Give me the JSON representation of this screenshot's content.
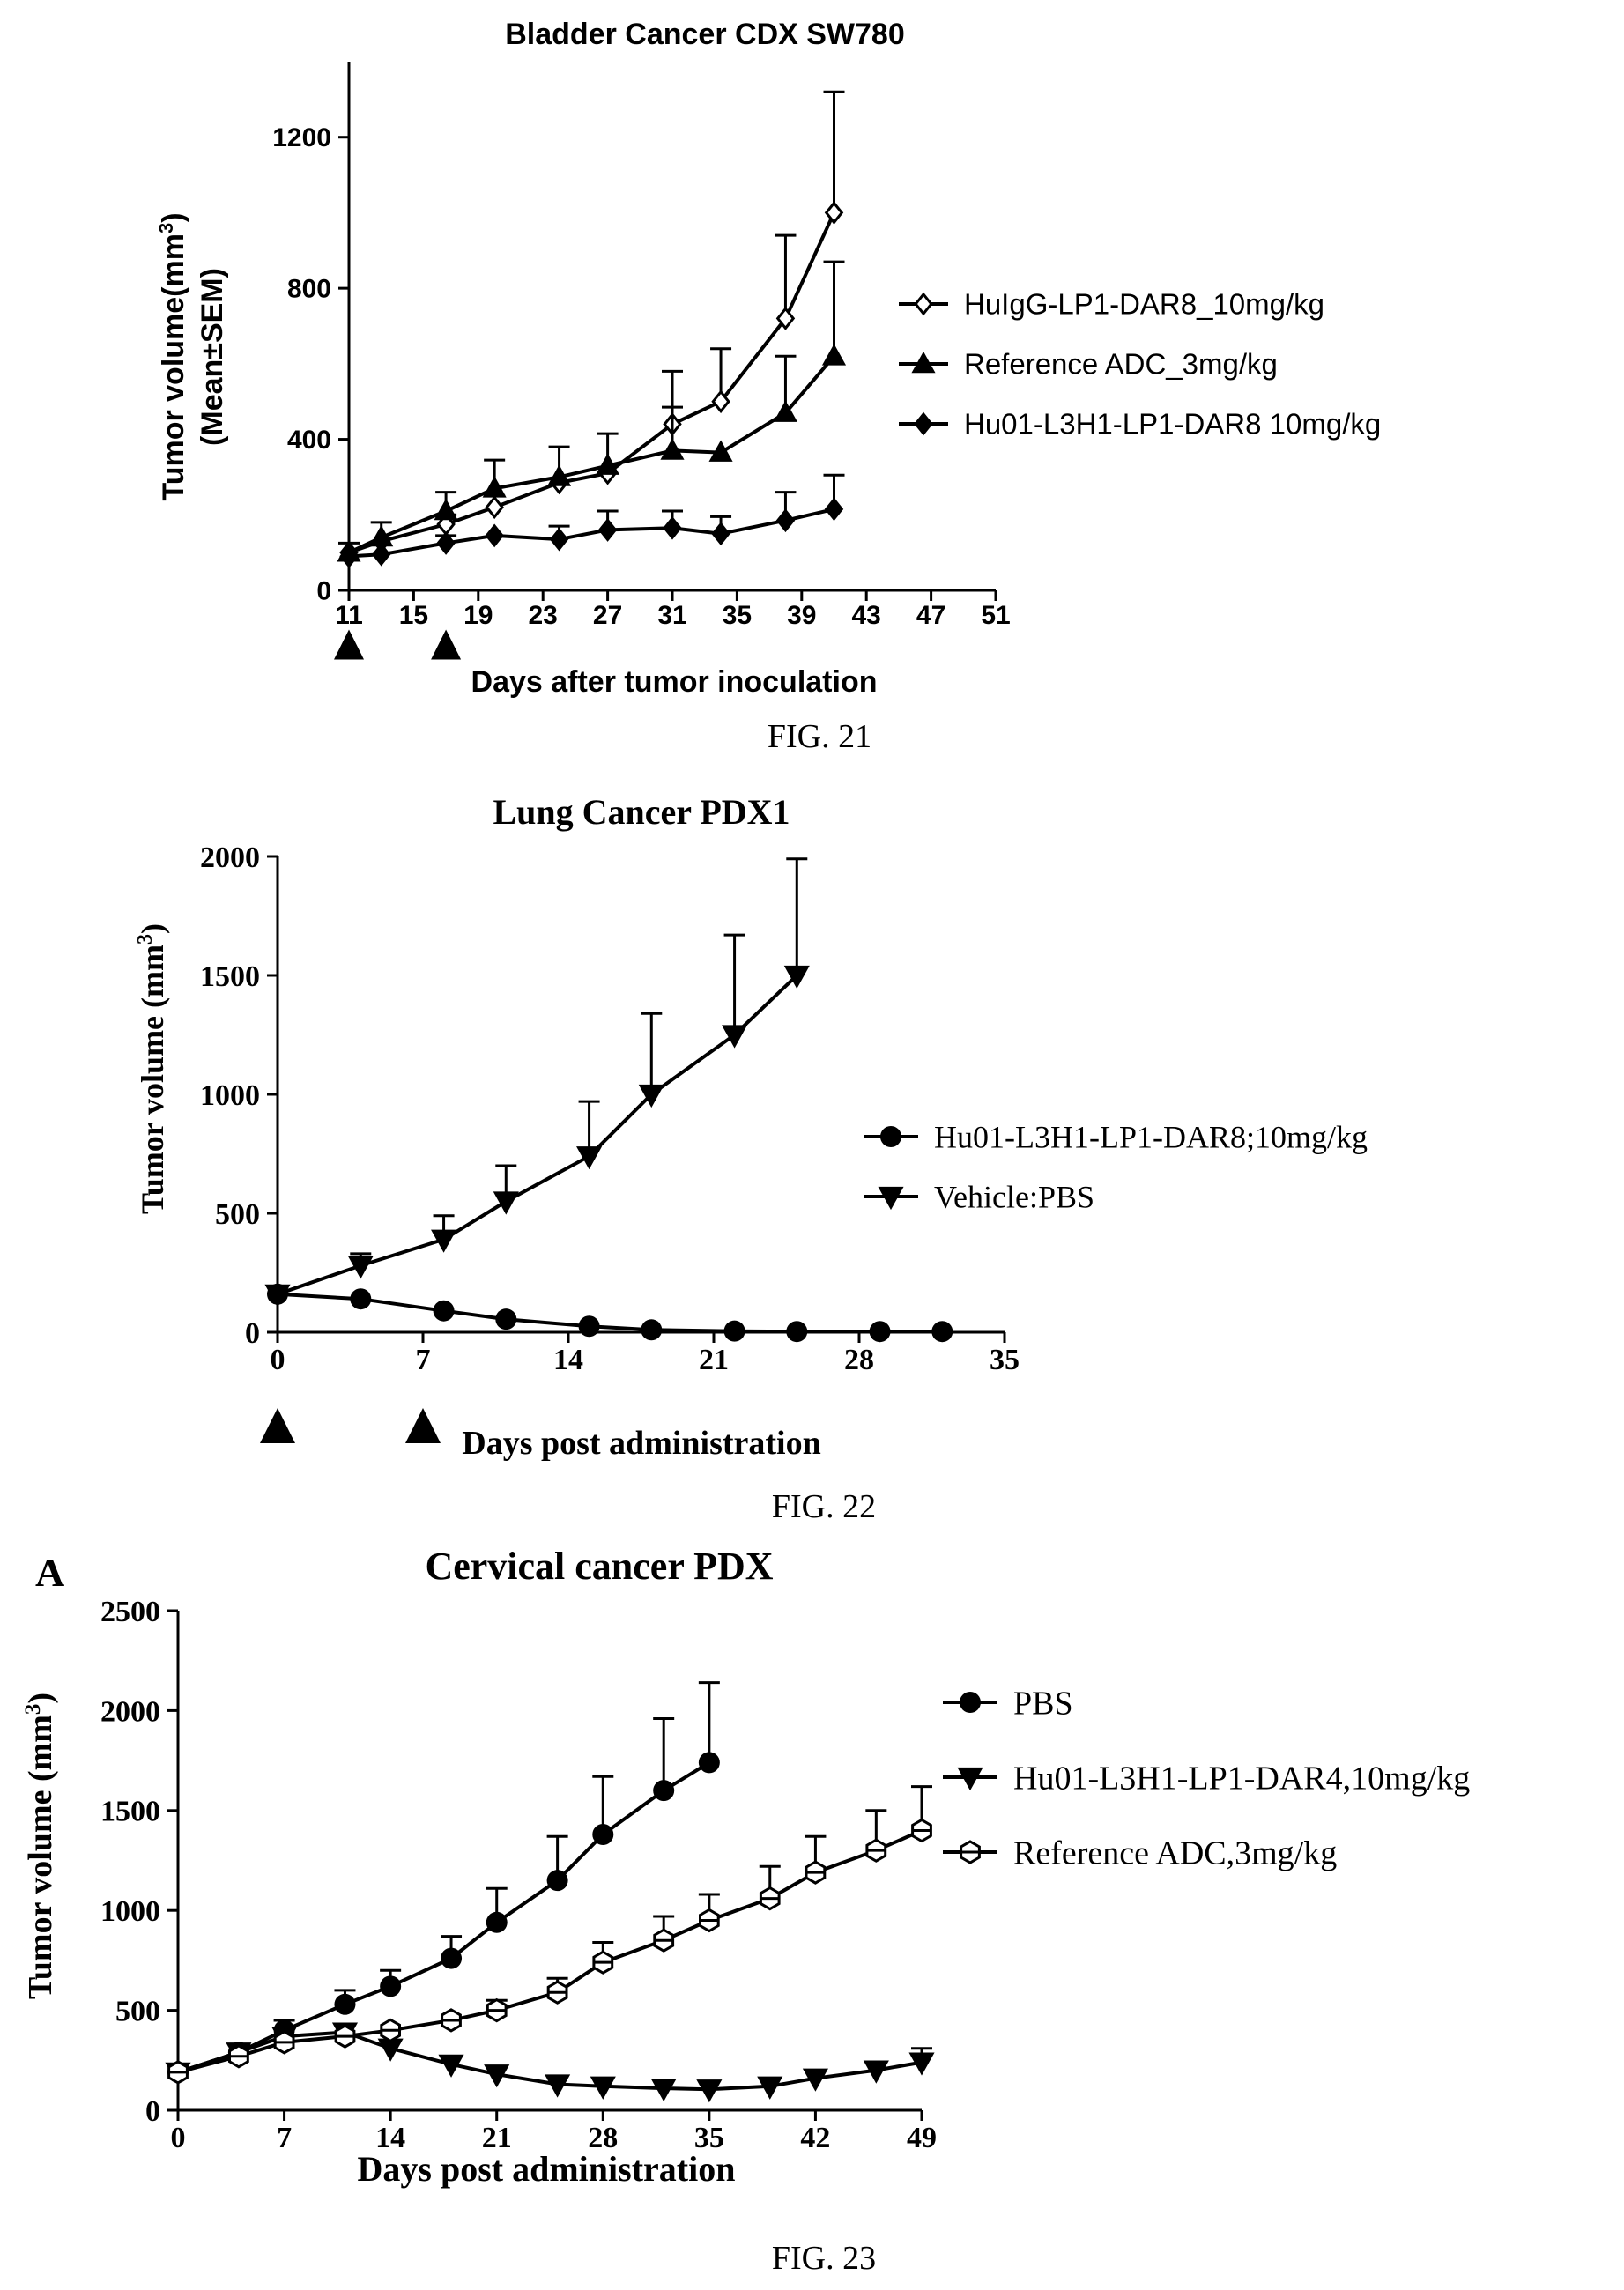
{
  "chart_data": [
    {
      "type": "line",
      "title": "Bladder Cancer CDX SW780",
      "figure_label": "FIG. 21",
      "panel_label": "",
      "xlabel": "Days  after tumor inoculation",
      "ylabel_line1": "Tumor volume(mm",
      "ylabel_sup": "3",
      "ylabel_line1_end": ")",
      "ylabel_line2": "(Mean±SEM)",
      "xlim": [
        11,
        51
      ],
      "ylim": [
        0,
        1400
      ],
      "xticks": [
        11,
        15,
        19,
        23,
        27,
        31,
        35,
        39,
        43,
        47,
        51
      ],
      "yticks": [
        0,
        400,
        800,
        1200
      ],
      "dosing_days": [
        11,
        17
      ],
      "grid": false,
      "legend_position": "right",
      "series": [
        {
          "name": "HuIgG-LP1-DAR8_10mg/kg",
          "marker": "diamond-open",
          "x": [
            11,
            13,
            17,
            20,
            24,
            27,
            31,
            34,
            38,
            41
          ],
          "y": [
            100,
            130,
            175,
            220,
            285,
            310,
            440,
            500,
            720,
            1000
          ],
          "err": [
            0,
            0,
            25,
            30,
            0,
            0,
            140,
            140,
            220,
            320
          ]
        },
        {
          "name": "Reference ADC_3mg/kg",
          "marker": "triangle-up",
          "x": [
            11,
            13,
            17,
            20,
            24,
            27,
            31,
            34,
            38,
            41
          ],
          "y": [
            100,
            140,
            210,
            270,
            300,
            330,
            370,
            365,
            470,
            620
          ],
          "err": [
            25,
            40,
            50,
            75,
            80,
            85,
            115,
            0,
            150,
            250
          ]
        },
        {
          "name": "Hu01-L3H1-LP1-DAR8 10mg/kg",
          "marker": "diamond",
          "x": [
            11,
            13,
            17,
            20,
            24,
            27,
            31,
            34,
            38,
            41
          ],
          "y": [
            90,
            95,
            125,
            145,
            135,
            160,
            165,
            150,
            185,
            215
          ],
          "err": [
            0,
            0,
            20,
            0,
            35,
            50,
            45,
            45,
            75,
            90
          ]
        }
      ]
    },
    {
      "type": "line",
      "title": "Lung Cancer PDX1",
      "figure_label": "FIG. 22",
      "panel_label": "",
      "xlabel": "Days post administration",
      "ylabel_line1": "Tumor volume (mm",
      "ylabel_sup": "3",
      "ylabel_line1_end": ")",
      "ylabel_line2": "",
      "xlim": [
        0,
        35
      ],
      "ylim": [
        0,
        2000
      ],
      "xticks": [
        0,
        7,
        14,
        21,
        28,
        35
      ],
      "yticks": [
        0,
        500,
        1000,
        1500,
        2000
      ],
      "dosing_days": [
        0,
        7
      ],
      "grid": false,
      "legend_position": "right",
      "series": [
        {
          "name": "Hu01-L3H1-LP1-DAR8;10mg/kg",
          "marker": "circle",
          "x": [
            0,
            4,
            8,
            11,
            15,
            18,
            22,
            25,
            29,
            32
          ],
          "y": [
            160,
            140,
            90,
            55,
            25,
            10,
            5,
            3,
            3,
            3
          ],
          "err": [
            0,
            0,
            0,
            0,
            0,
            0,
            0,
            0,
            0,
            0
          ]
        },
        {
          "name": "Vehicle:PBS",
          "marker": "triangle-down",
          "x": [
            0,
            4,
            8,
            11,
            15,
            18,
            22,
            25
          ],
          "y": [
            160,
            280,
            390,
            550,
            740,
            1000,
            1250,
            1500
          ],
          "err": [
            0,
            50,
            100,
            150,
            230,
            340,
            420,
            490
          ]
        }
      ]
    },
    {
      "type": "line",
      "title": "Cervical cancer PDX",
      "figure_label": "FIG. 23",
      "panel_label": "A",
      "xlabel": "Days post administration",
      "ylabel_line1": "Tumor volume (mm",
      "ylabel_sup": "3",
      "ylabel_line1_end": ")",
      "ylabel_line2": "",
      "xlim": [
        0,
        49
      ],
      "ylim": [
        0,
        2500
      ],
      "xticks": [
        0,
        7,
        14,
        21,
        28,
        35,
        42,
        49
      ],
      "yticks": [
        0,
        500,
        1000,
        1500,
        2000,
        2500
      ],
      "dosing_days": [],
      "grid": false,
      "legend_position": "right",
      "series": [
        {
          "name": "PBS",
          "marker": "circle",
          "x": [
            0,
            4,
            7,
            11,
            14,
            18,
            21,
            25,
            28,
            32,
            35
          ],
          "y": [
            190,
            290,
            400,
            530,
            620,
            760,
            940,
            1150,
            1380,
            1600,
            1740
          ],
          "err": [
            0,
            40,
            50,
            70,
            80,
            110,
            170,
            220,
            290,
            360,
            400
          ]
        },
        {
          "name": "Hu01-L3H1-LP1-DAR4,10mg/kg",
          "marker": "triangle-down",
          "x": [
            0,
            4,
            7,
            11,
            14,
            18,
            21,
            25,
            28,
            32,
            35,
            39,
            42,
            46,
            49
          ],
          "y": [
            190,
            290,
            370,
            390,
            310,
            230,
            180,
            130,
            120,
            110,
            105,
            120,
            160,
            200,
            240
          ],
          "err": [
            0,
            0,
            0,
            0,
            0,
            0,
            0,
            0,
            0,
            0,
            0,
            0,
            0,
            0,
            70
          ]
        },
        {
          "name": "Reference ADC,3mg/kg",
          "marker": "hexagon-open",
          "x": [
            0,
            4,
            7,
            11,
            14,
            18,
            21,
            25,
            28,
            32,
            35,
            39,
            42,
            46,
            49
          ],
          "y": [
            190,
            270,
            340,
            370,
            400,
            450,
            500,
            590,
            740,
            850,
            950,
            1060,
            1190,
            1300,
            1400
          ],
          "err": [
            0,
            0,
            0,
            0,
            0,
            0,
            50,
            70,
            100,
            120,
            130,
            160,
            180,
            200,
            220
          ]
        }
      ]
    }
  ]
}
